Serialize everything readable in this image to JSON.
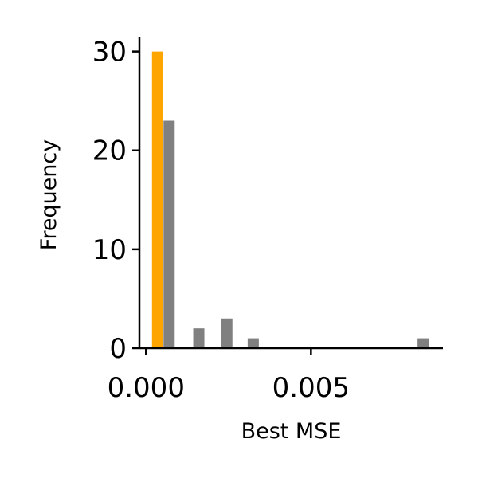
{
  "chart_data": {
    "type": "bar",
    "title": "",
    "xlabel": "Best MSE",
    "ylabel": "Frequency",
    "xlim": [
      -0.0002,
      0.009
    ],
    "ylim": [
      0,
      31.5
    ],
    "x_ticks": [
      0.0,
      0.005
    ],
    "x_tick_labels": [
      "0.000",
      "0.005"
    ],
    "y_ticks": [
      0,
      10,
      20,
      30
    ],
    "y_tick_labels": [
      "0",
      "10",
      "20",
      "30"
    ],
    "grid": false,
    "legend": "none",
    "series": [
      {
        "color": "#FFA500",
        "bars": [
          {
            "x": 0.00035,
            "value": 30
          }
        ]
      },
      {
        "color": "#808080",
        "bars": [
          {
            "x": 0.0007,
            "value": 23
          },
          {
            "x": 0.0016,
            "value": 2
          },
          {
            "x": 0.00245,
            "value": 3
          },
          {
            "x": 0.00325,
            "value": 1
          },
          {
            "x": 0.0084,
            "value": 1
          }
        ]
      }
    ]
  }
}
